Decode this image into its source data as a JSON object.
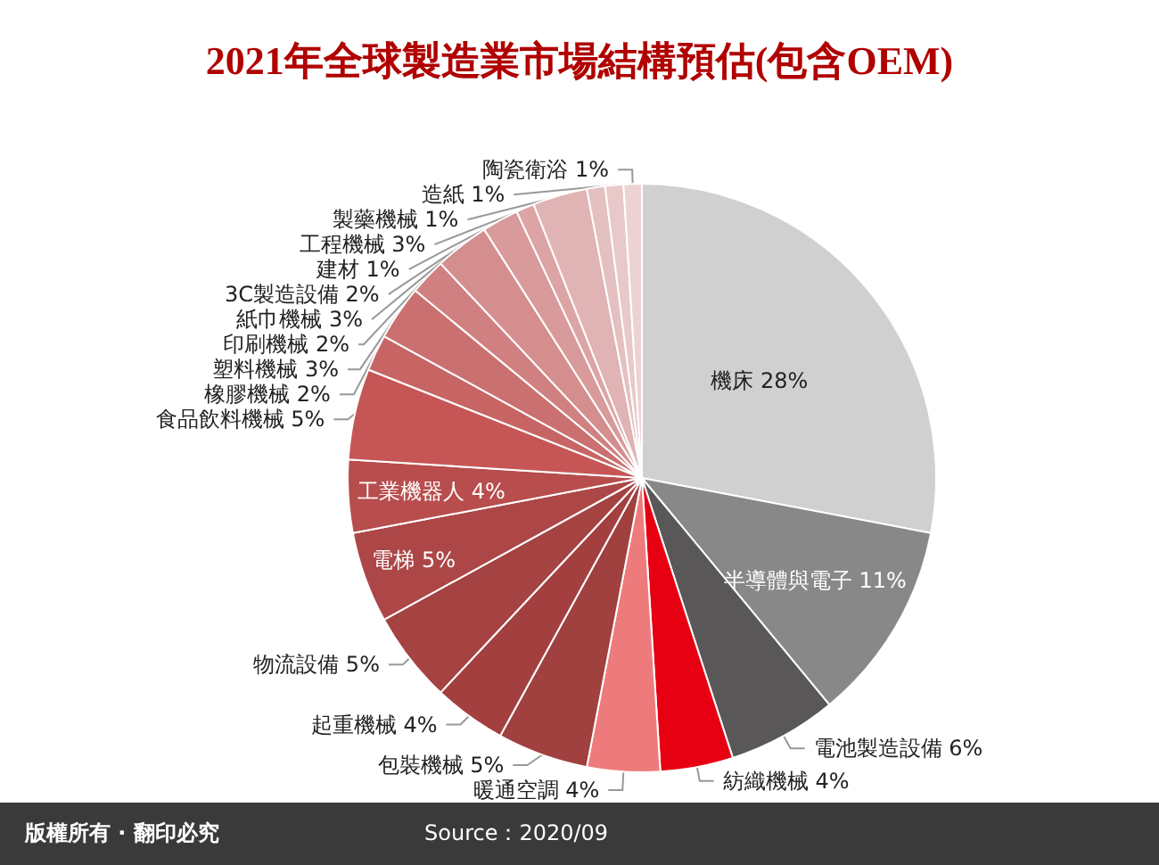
{
  "chart_data": {
    "type": "pie",
    "title": "2021年全球製造業市場結構預估(包含OEM)",
    "categories": [
      "機床",
      "半導體與電子",
      "電池製造設備",
      "紡織機械",
      "暖通空調",
      "包裝機械",
      "起重機械",
      "物流設備",
      "電梯",
      "工業機器人",
      "食品飲料機械",
      "橡膠機械",
      "塑料機械",
      "印刷機械",
      "紙巾機械",
      "3C製造設備",
      "建材",
      "工程機械",
      "製藥機械",
      "造紙",
      "陶瓷衛浴"
    ],
    "values": [
      28,
      11,
      6,
      4,
      4,
      5,
      4,
      5,
      5,
      4,
      5,
      2,
      3,
      2,
      3,
      2,
      1,
      3,
      1,
      1,
      1
    ],
    "value_labels": [
      "28%",
      "11%",
      "6%",
      "4%",
      "4%",
      "5%",
      "4%",
      "5%",
      "5%",
      "4%",
      "5%",
      "2%",
      "3%",
      "2%",
      "3%",
      "2%",
      "1%",
      "3%",
      "1%",
      "1%",
      "1%"
    ],
    "colors": [
      "#d0d0d0",
      "#888888",
      "#595757",
      "#e60012",
      "#ee7b7c",
      "#a0403f",
      "#a3403f",
      "#a54242",
      "#ad4747",
      "#b84d4d",
      "#c65656",
      "#c76565",
      "#cb7070",
      "#d08080",
      "#d48e8e",
      "#d89a9a",
      "#dca4a4",
      "#e0b4b4",
      "#e4c0c0",
      "#e8c8c8",
      "#ecd2d2"
    ],
    "annotations": [
      "版權所有 · 翻印必究",
      "Source：2020/09"
    ]
  }
}
